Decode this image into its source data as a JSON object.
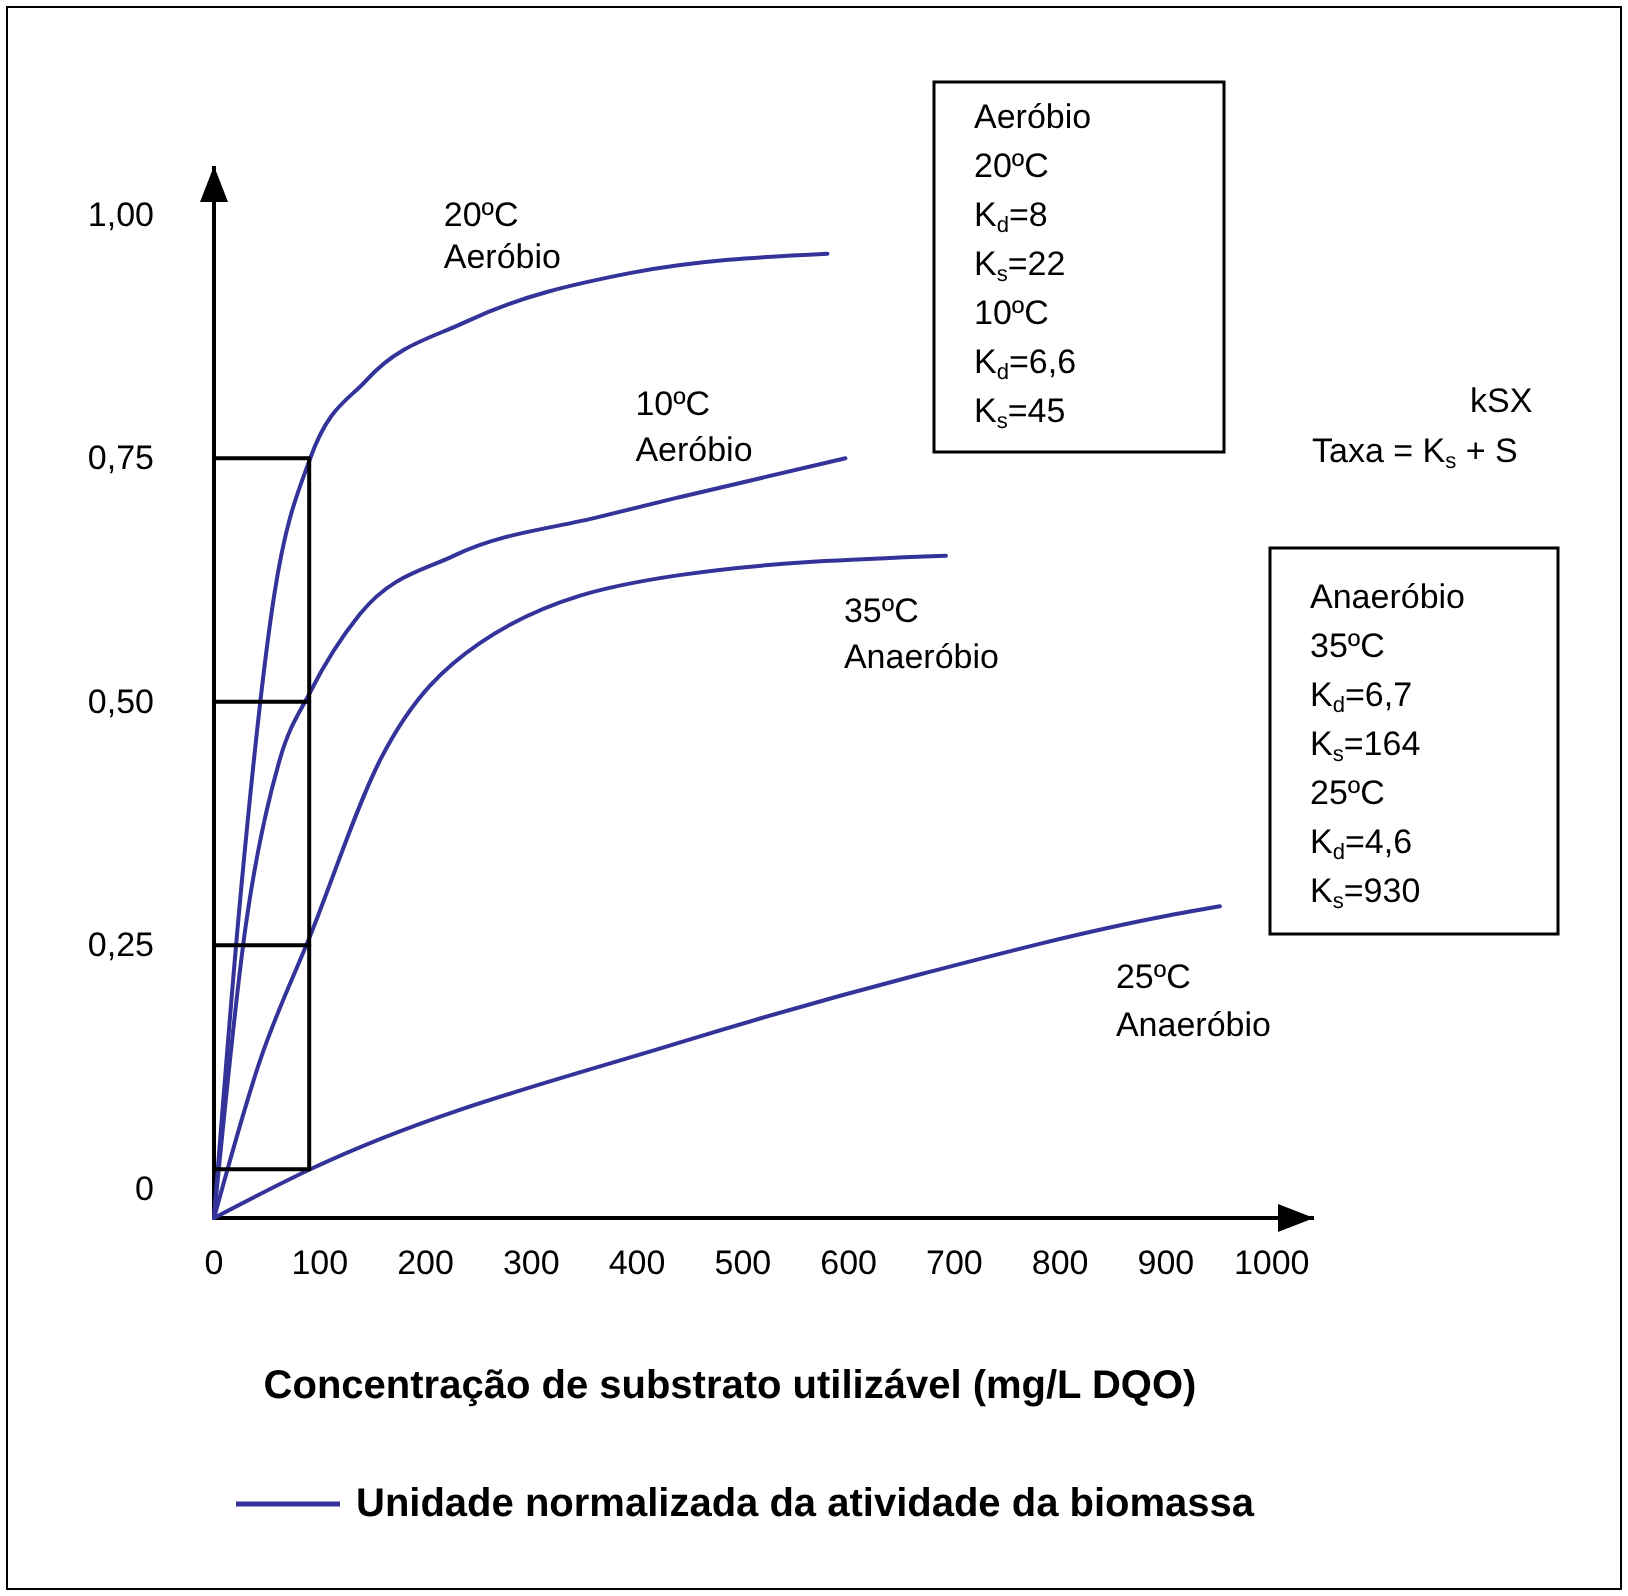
{
  "chart_data": {
    "type": "line",
    "xlabel": "Concentração de substrato utilizável (mg/L DQO)",
    "legend": "bottom",
    "xlim": [
      0,
      1040
    ],
    "ylim": [
      -0.03,
      1.05
    ],
    "xticks": [
      0,
      100,
      200,
      300,
      400,
      500,
      600,
      700,
      800,
      900,
      1000
    ],
    "yticks": [
      {
        "value": 0,
        "label": "0"
      },
      {
        "value": 0.25,
        "label": "0,25"
      },
      {
        "value": 0.5,
        "label": "0,50"
      },
      {
        "value": 0.75,
        "label": "0,75"
      },
      {
        "value": 1,
        "label": "1,00"
      }
    ],
    "series": [
      {
        "name": "Unidade normalizada da atividade da biomassa",
        "color": "#333399",
        "x": [
          0,
          25,
          57,
          91,
          144,
          238,
          393,
          580
        ],
        "values": [
          -0.03,
          0.3,
          0.61,
          0.75,
          0.83,
          0.89,
          0.94,
          0.96
        ]
      },
      {
        "color": "#333399",
        "x": [
          0,
          30,
          62,
          91,
          138,
          227,
          365,
          440,
          597
        ],
        "values": [
          -0.03,
          0.27,
          0.44,
          0.51,
          0.59,
          0.65,
          0.69,
          0.71,
          0.75
        ]
      },
      {
        "color": "#333399",
        "x": [
          0,
          43,
          91,
          157,
          251,
          440,
          692
        ],
        "values": [
          -0.03,
          0.13,
          0.26,
          0.44,
          0.56,
          0.63,
          0.65
        ]
      },
      {
        "color": "#333399",
        "x": [
          0,
          91,
          440,
          667,
          900,
          951
        ],
        "values": [
          -0.03,
          0.02,
          0.15,
          0.22,
          0.28,
          0.29
        ]
      },
      {
        "color": "#000000",
        "x": [
          0,
          90,
          90
        ],
        "values": [
          0.75,
          0.75,
          0.02
        ]
      },
      {
        "color": "#000000",
        "x": [
          0,
          90
        ],
        "values": [
          0.02,
          0.02
        ]
      },
      {
        "color": "#000000",
        "x": [
          0,
          90
        ],
        "values": [
          0.5,
          0.5
        ]
      },
      {
        "color": "#000000",
        "x": [
          0,
          90
        ],
        "values": [
          0.25,
          0.25
        ]
      }
    ],
    "annotations": [
      {
        "text": "20ºC\nAeróbio",
        "x": 238,
        "y": 0.89
      },
      {
        "text": "10ºC\nAeróbio",
        "x": 440,
        "y": 0.71
      },
      {
        "text": "35ºC\nAnaeróbio",
        "x": 692,
        "y": 0.65
      },
      {
        "text": "25ºC\nAnaeróbio",
        "x": 900,
        "y": 0.28
      },
      "Aeróbio\n20ºC\nK$_{d}$=8\nK$_{s}$=22\n10ºC\nK$_{d}$=6,6\nK$_{s}$=45",
      "Anaeróbio\n35ºC\nK$_{d}$=6,7\nK$_{s}$=164\n25ºC\nK$_{d}$=4,6\nK$_{s}$=930",
      "kSX",
      "Taxa =  K$_{s}$ + S"
    ]
  }
}
